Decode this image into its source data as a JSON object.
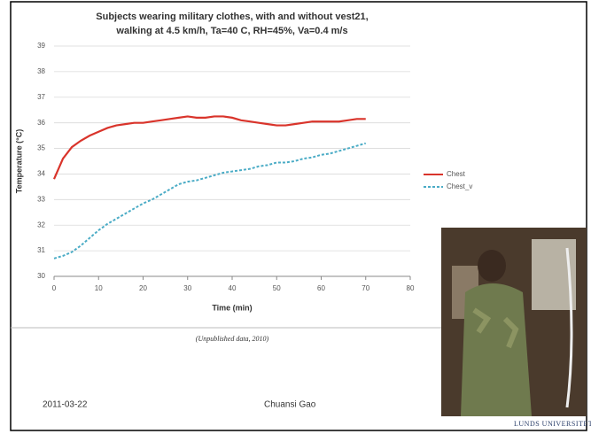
{
  "chart_data": {
    "type": "line",
    "title": [
      "Subjects wearing military clothes, with and without vest21,",
      "walking at 4.5 km/h, Ta=40 C, RH=45%, Va=0.4 m/s"
    ],
    "x_label": "Time (min)",
    "y_label": "Temperature (°C)",
    "x": [
      0,
      2,
      4,
      6,
      8,
      10,
      12,
      14,
      16,
      18,
      20,
      22,
      24,
      26,
      28,
      30,
      32,
      34,
      36,
      38,
      40,
      42,
      44,
      46,
      48,
      50,
      52,
      54,
      56,
      58,
      60,
      62,
      64,
      66,
      68,
      70
    ],
    "series": [
      {
        "name": "Chest",
        "color": "#d9342b",
        "dashed": false,
        "values": [
          33.8,
          34.6,
          35.05,
          35.3,
          35.5,
          35.65,
          35.8,
          35.9,
          35.95,
          36.0,
          36.0,
          36.05,
          36.1,
          36.15,
          36.2,
          36.25,
          36.2,
          36.2,
          36.25,
          36.25,
          36.2,
          36.1,
          36.05,
          36.0,
          35.95,
          35.9,
          35.9,
          35.95,
          36.0,
          36.05,
          36.05,
          36.05,
          36.05,
          36.1,
          36.15,
          36.15
        ]
      },
      {
        "name": "Chest_v",
        "color": "#4bacc6",
        "dashed": true,
        "values": [
          30.7,
          30.8,
          30.95,
          31.2,
          31.5,
          31.8,
          32.05,
          32.25,
          32.45,
          32.65,
          32.85,
          33.0,
          33.2,
          33.4,
          33.6,
          33.7,
          33.75,
          33.85,
          33.95,
          34.05,
          34.1,
          34.15,
          34.2,
          34.3,
          34.35,
          34.45,
          34.45,
          34.5,
          34.6,
          34.65,
          34.75,
          34.8,
          34.9,
          35.0,
          35.1,
          35.2
        ]
      }
    ],
    "xlim": [
      0,
      80
    ],
    "xticks": [
      0,
      10,
      20,
      30,
      40,
      50,
      60,
      70,
      80
    ],
    "ylim": [
      30,
      39
    ],
    "yticks": [
      30,
      31,
      32,
      33,
      34,
      35,
      36,
      37,
      38,
      39
    ],
    "grid": true,
    "legend": "right"
  },
  "caption": "(Unpublished data, 2010)",
  "footer": {
    "date": "2011-03-22",
    "author": "Chuansi Gao",
    "logo": "LUNDS UNIVERSITET"
  }
}
